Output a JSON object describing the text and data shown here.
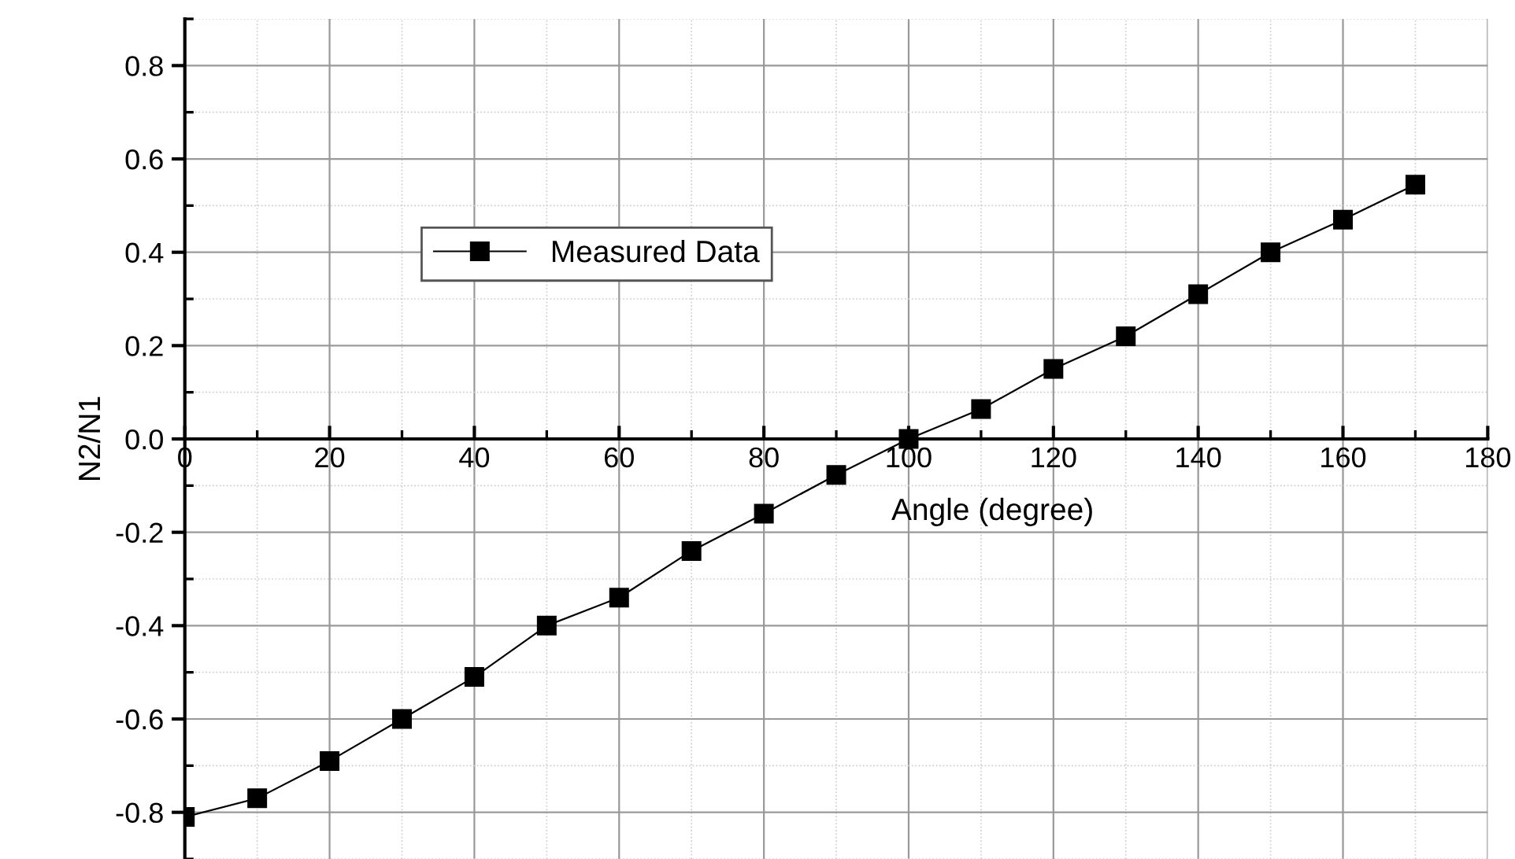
{
  "chart_data": {
    "type": "line",
    "xlabel": "Angle (degree)",
    "ylabel": "N2/N1",
    "x": [
      0,
      10,
      20,
      30,
      40,
      50,
      60,
      70,
      80,
      90,
      100,
      110,
      120,
      130,
      140,
      150,
      160,
      170
    ],
    "series": [
      {
        "name": "Measured Data",
        "color": "#000000",
        "values": [
          -0.81,
          -0.77,
          -0.69,
          -0.6,
          -0.51,
          -0.4,
          -0.34,
          -0.24,
          -0.16,
          -0.077,
          0.0,
          0.064,
          0.15,
          0.22,
          0.31,
          0.4,
          0.47,
          0.545
        ]
      }
    ],
    "xlim": [
      0,
      180
    ],
    "xticks": [
      0,
      20,
      40,
      60,
      80,
      100,
      120,
      140,
      160,
      180
    ],
    "ylim": [
      -0.9,
      0.9
    ],
    "yticks": [
      {
        "value": -0.8,
        "label": "-0.8"
      },
      {
        "value": -0.6,
        "label": "-0.6"
      },
      {
        "value": -0.4,
        "label": "-0.4"
      },
      {
        "value": -0.2,
        "label": "-0.2"
      },
      {
        "value": 0.0,
        "label": "0.0"
      },
      {
        "value": 0.2,
        "label": "0.2"
      },
      {
        "value": 0.4,
        "label": "0.4"
      },
      {
        "value": 0.6,
        "label": "0.6"
      },
      {
        "value": 0.8,
        "label": "0.8"
      }
    ],
    "grid": true,
    "legend": "center left",
    "marker": "square",
    "line_style": "solid"
  }
}
